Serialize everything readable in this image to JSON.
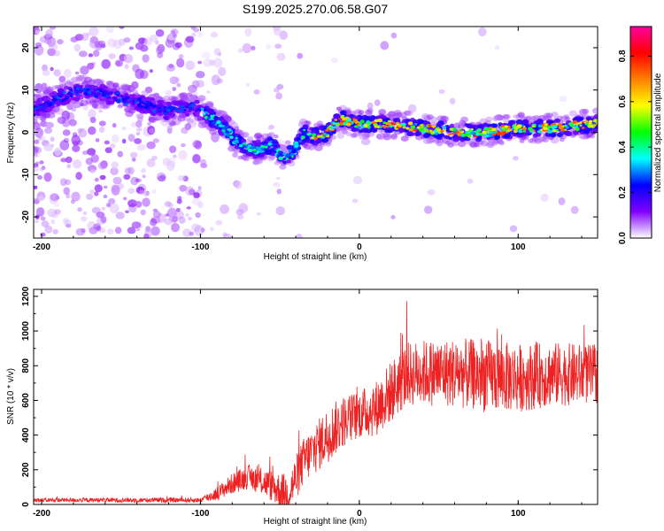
{
  "title": "S199.2025.270.06.58.G07",
  "chart_data": [
    {
      "type": "heatmap",
      "name": "spectrogram",
      "xlabel": "Height of straight line (km)",
      "ylabel": "Frequency (Hz)",
      "xlim": [
        -205,
        150
      ],
      "ylim": [
        -25,
        25
      ],
      "xticks": [
        -200,
        -100,
        0,
        100
      ],
      "yticks": [
        -20,
        -10,
        0,
        10,
        20
      ],
      "ridge": {
        "x": [
          -205,
          -190,
          -175,
          -160,
          -140,
          -120,
          -105,
          -95,
          -85,
          -75,
          -65,
          -55,
          -48,
          -42,
          -35,
          -28,
          -20,
          -15,
          -10,
          0,
          20,
          40,
          60,
          80,
          100,
          120,
          150
        ],
        "y": [
          5,
          8,
          10,
          9,
          7,
          5,
          6,
          4,
          1,
          -3,
          -4,
          -3,
          -6,
          -5,
          0,
          -1,
          0,
          2,
          3,
          2,
          2,
          1,
          0,
          0,
          1,
          1,
          2
        ]
      },
      "colorbar": {
        "label": "Normalized spectral amplitude",
        "range": [
          0.0,
          0.93
        ],
        "ticks": [
          0.0,
          0.2,
          0.4,
          0.6,
          0.8
        ],
        "tick_labels": [
          "0.0",
          "0.2",
          "0.4",
          "0.6",
          "0.8"
        ],
        "colors": [
          "#ffffff",
          "#8000ff",
          "#0000ff",
          "#00ffff",
          "#00ff00",
          "#ffff00",
          "#ff8000",
          "#ff0000",
          "#ff00a0"
        ]
      }
    },
    {
      "type": "line",
      "name": "snr",
      "xlabel": "Height of straight line (km)",
      "ylabel": "SNR (10 * v/v)",
      "xlim": [
        -205,
        150
      ],
      "ylim": [
        0,
        1240
      ],
      "xticks": [
        -200,
        -100,
        0,
        100
      ],
      "yticks": [
        0,
        200,
        400,
        600,
        800,
        1000,
        1200
      ],
      "color": "#ee2222",
      "envelope": {
        "x": [
          -205,
          -150,
          -100,
          -90,
          -80,
          -70,
          -60,
          -50,
          -45,
          -40,
          -35,
          -30,
          -25,
          -20,
          -10,
          0,
          10,
          20,
          30,
          40,
          60,
          80,
          100,
          120,
          150
        ],
        "y": [
          25,
          25,
          25,
          60,
          120,
          160,
          130,
          80,
          60,
          150,
          250,
          300,
          350,
          400,
          480,
          520,
          550,
          650,
          750,
          760,
          760,
          740,
          730,
          750,
          750
        ]
      },
      "noise": {
        "x": [
          -205,
          -100,
          -80,
          -60,
          -40,
          -20,
          0,
          20,
          40,
          80,
          150
        ],
        "amp": [
          12,
          15,
          60,
          80,
          130,
          160,
          140,
          180,
          190,
          210,
          170
        ]
      }
    }
  ]
}
